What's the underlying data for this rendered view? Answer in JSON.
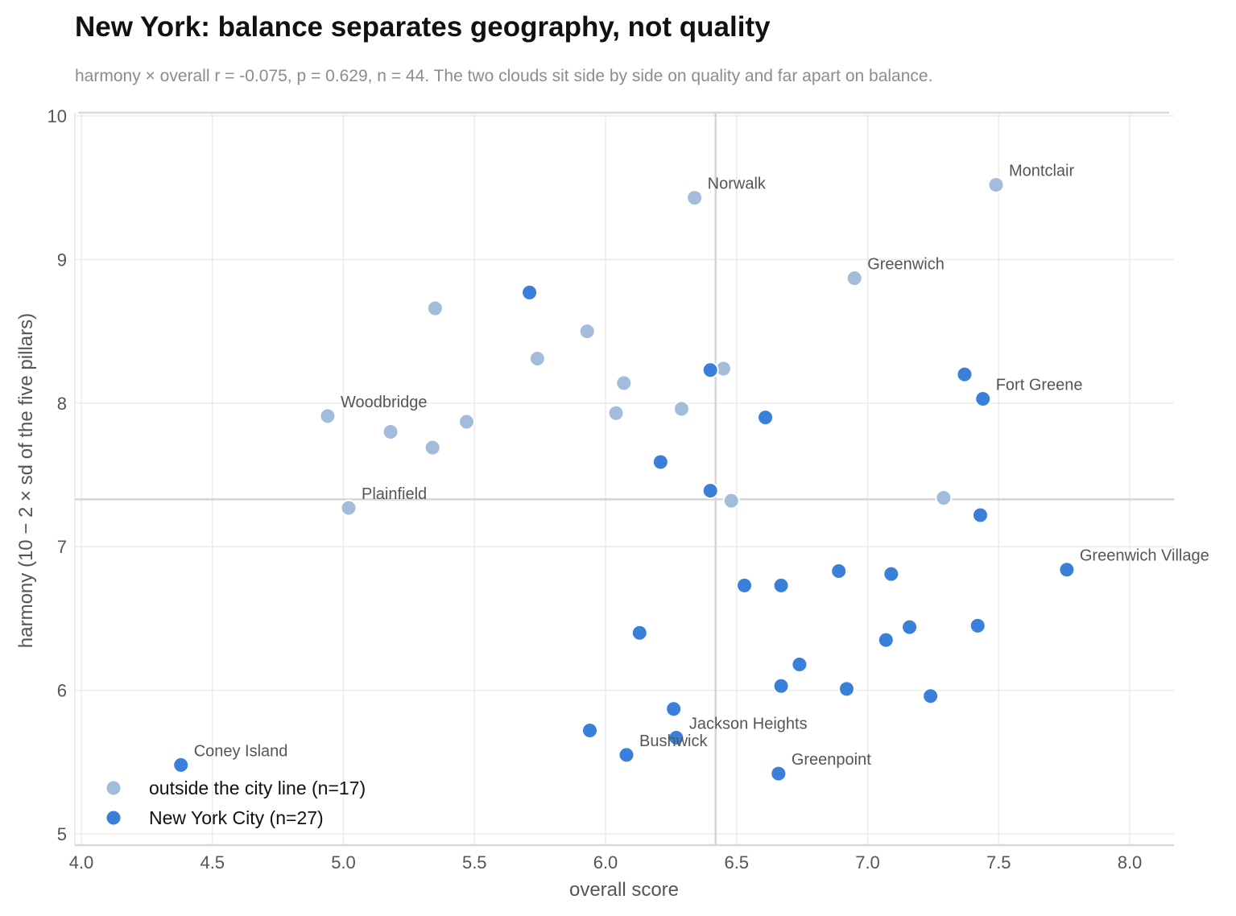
{
  "title": "New York: balance separates geography, not quality",
  "subtitle": "harmony × overall  r = -0.075, p = 0.629, n = 44. The two clouds sit side by side on quality and far apart on balance.",
  "colors": {
    "outside": "#a3bcdc",
    "city": "#3a7fd9",
    "grid": "#ebebeb",
    "refline": "#d4d4d4"
  },
  "chart_data": {
    "type": "scatter",
    "title": "New York: balance separates geography, not quality",
    "xlabel": "overall score",
    "ylabel": "harmony  (10 − 2 × sd of the five pillars)",
    "xlim": [
      4.0,
      8.15
    ],
    "ylim": [
      4.92,
      10.05
    ],
    "xticks": [
      "4.0",
      "4.5",
      "5.0",
      "5.5",
      "6.0",
      "6.5",
      "7.0",
      "7.5",
      "8.0"
    ],
    "yticks": [
      "5",
      "6",
      "7",
      "8",
      "9",
      "10"
    ],
    "grid": true,
    "legend_position": "bottom-left",
    "reference_lines": {
      "x": 6.42,
      "y": 7.33
    },
    "series": [
      {
        "name": "outside the city line  (n=17)",
        "color": "#a3bcdc",
        "points": [
          {
            "x": 6.34,
            "y": 9.43,
            "label": "Norwalk"
          },
          {
            "x": 7.49,
            "y": 9.52,
            "label": "Montclair"
          },
          {
            "x": 6.95,
            "y": 8.87,
            "label": "Greenwich"
          },
          {
            "x": 5.35,
            "y": 8.66,
            "label": ""
          },
          {
            "x": 5.93,
            "y": 8.5,
            "label": ""
          },
          {
            "x": 5.74,
            "y": 8.31,
            "label": ""
          },
          {
            "x": 6.45,
            "y": 8.24,
            "label": ""
          },
          {
            "x": 6.07,
            "y": 8.14,
            "label": ""
          },
          {
            "x": 6.29,
            "y": 7.96,
            "label": ""
          },
          {
            "x": 6.04,
            "y": 7.93,
            "label": ""
          },
          {
            "x": 4.94,
            "y": 7.91,
            "label": "Woodbridge"
          },
          {
            "x": 5.47,
            "y": 7.87,
            "label": ""
          },
          {
            "x": 5.18,
            "y": 7.8,
            "label": ""
          },
          {
            "x": 5.34,
            "y": 7.69,
            "label": ""
          },
          {
            "x": 5.02,
            "y": 7.27,
            "label": "Plainfield"
          },
          {
            "x": 6.48,
            "y": 7.32,
            "label": ""
          },
          {
            "x": 7.29,
            "y": 7.34,
            "label": ""
          }
        ]
      },
      {
        "name": "New York City  (n=27)",
        "color": "#3a7fd9",
        "points": [
          {
            "x": 5.71,
            "y": 8.77,
            "label": ""
          },
          {
            "x": 6.4,
            "y": 8.23,
            "label": ""
          },
          {
            "x": 7.37,
            "y": 8.2,
            "label": ""
          },
          {
            "x": 7.44,
            "y": 8.03,
            "label": "Fort Greene"
          },
          {
            "x": 6.61,
            "y": 7.9,
            "label": ""
          },
          {
            "x": 6.21,
            "y": 7.59,
            "label": ""
          },
          {
            "x": 6.4,
            "y": 7.39,
            "label": ""
          },
          {
            "x": 7.43,
            "y": 7.22,
            "label": ""
          },
          {
            "x": 7.76,
            "y": 6.84,
            "label": "Greenwich Village"
          },
          {
            "x": 6.89,
            "y": 6.83,
            "label": ""
          },
          {
            "x": 7.09,
            "y": 6.81,
            "label": ""
          },
          {
            "x": 6.53,
            "y": 6.73,
            "label": ""
          },
          {
            "x": 6.67,
            "y": 6.73,
            "label": ""
          },
          {
            "x": 7.42,
            "y": 6.45,
            "label": ""
          },
          {
            "x": 7.16,
            "y": 6.44,
            "label": ""
          },
          {
            "x": 6.13,
            "y": 6.4,
            "label": ""
          },
          {
            "x": 7.07,
            "y": 6.35,
            "label": ""
          },
          {
            "x": 6.74,
            "y": 6.18,
            "label": ""
          },
          {
            "x": 6.67,
            "y": 6.03,
            "label": ""
          },
          {
            "x": 6.92,
            "y": 6.01,
            "label": ""
          },
          {
            "x": 7.24,
            "y": 5.96,
            "label": ""
          },
          {
            "x": 6.26,
            "y": 5.87,
            "label": ""
          },
          {
            "x": 5.94,
            "y": 5.72,
            "label": ""
          },
          {
            "x": 6.27,
            "y": 5.67,
            "label": "Jackson Heights"
          },
          {
            "x": 6.08,
            "y": 5.55,
            "label": "Bushwick"
          },
          {
            "x": 4.38,
            "y": 5.48,
            "label": "Coney Island"
          },
          {
            "x": 6.66,
            "y": 5.42,
            "label": "Greenpoint"
          }
        ]
      }
    ]
  }
}
